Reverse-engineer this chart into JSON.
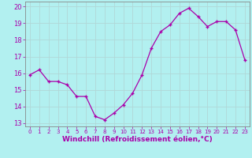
{
  "x": [
    0,
    1,
    2,
    3,
    4,
    5,
    6,
    7,
    8,
    9,
    10,
    11,
    12,
    13,
    14,
    15,
    16,
    17,
    18,
    19,
    20,
    21,
    22,
    23
  ],
  "y": [
    15.9,
    16.2,
    15.5,
    15.5,
    15.3,
    14.6,
    14.6,
    13.4,
    13.2,
    13.6,
    14.1,
    14.8,
    15.9,
    17.5,
    18.5,
    18.9,
    19.6,
    19.9,
    19.4,
    18.8,
    19.1,
    19.1,
    18.6,
    16.8
  ],
  "line_color": "#aa00aa",
  "marker": "+",
  "bg_color": "#b2f0f0",
  "grid_color": "#c8e8e8",
  "spine_color": "#888888",
  "tick_label_color": "#aa00aa",
  "xlabel": "Windchill (Refroidissement éolien,°C)",
  "xlabel_color": "#aa00aa",
  "xlim": [
    -0.5,
    23.5
  ],
  "ylim": [
    12.8,
    20.3
  ],
  "yticks": [
    13,
    14,
    15,
    16,
    17,
    18,
    19,
    20
  ],
  "xticks": [
    0,
    1,
    2,
    3,
    4,
    5,
    6,
    7,
    8,
    9,
    10,
    11,
    12,
    13,
    14,
    15,
    16,
    17,
    18,
    19,
    20,
    21,
    22,
    23
  ],
  "font_size_ticks_x": 5,
  "font_size_ticks_y": 6,
  "font_size_xlabel": 6.5,
  "marker_size": 3,
  "line_width": 0.9
}
